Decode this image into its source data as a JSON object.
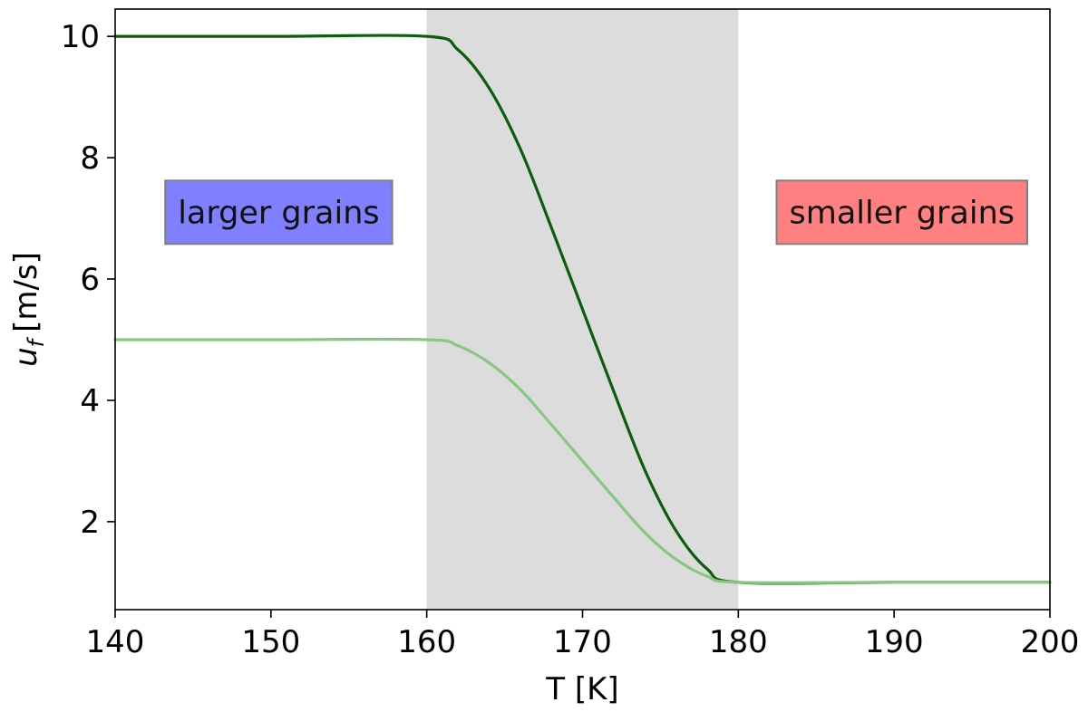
{
  "chart_data": {
    "type": "line",
    "xlabel": "T [K]",
    "ylabel_main": "u",
    "ylabel_sub": "f",
    "ylabel_unit": "[m/s]",
    "xlim": [
      140,
      200
    ],
    "ylim": [
      0.55,
      10.45
    ],
    "xticks": [
      140,
      150,
      160,
      170,
      180,
      190,
      200
    ],
    "yticks": [
      2,
      4,
      6,
      8,
      10
    ],
    "grid": false,
    "shaded_region": {
      "x": [
        160,
        180
      ],
      "color": "#dcdcdc"
    },
    "series": [
      {
        "color": "#0b5e0b",
        "x": [
          140,
          150,
          160,
          162,
          164,
          166,
          168,
          170,
          172,
          174,
          176,
          178,
          180,
          190,
          200
        ],
        "y": [
          10,
          10,
          10,
          9.78,
          9.15,
          8.15,
          6.85,
          5.5,
          4.15,
          2.85,
          1.85,
          1.22,
          1,
          1,
          1
        ]
      },
      {
        "color": "#88c77f",
        "x": [
          140,
          150,
          160,
          162,
          164,
          166,
          168,
          170,
          172,
          174,
          176,
          178,
          180,
          190,
          200
        ],
        "y": [
          5,
          5,
          5,
          4.9,
          4.62,
          4.18,
          3.6,
          3.0,
          2.4,
          1.82,
          1.38,
          1.1,
          1,
          1,
          1
        ]
      }
    ],
    "annotations": [
      {
        "text": "larger grains",
        "box_color": "#8080ff",
        "x": 150.5,
        "y": 7.1
      },
      {
        "text": "smaller grains",
        "box_color": "#ff8080",
        "x": 190.5,
        "y": 7.1
      }
    ]
  }
}
